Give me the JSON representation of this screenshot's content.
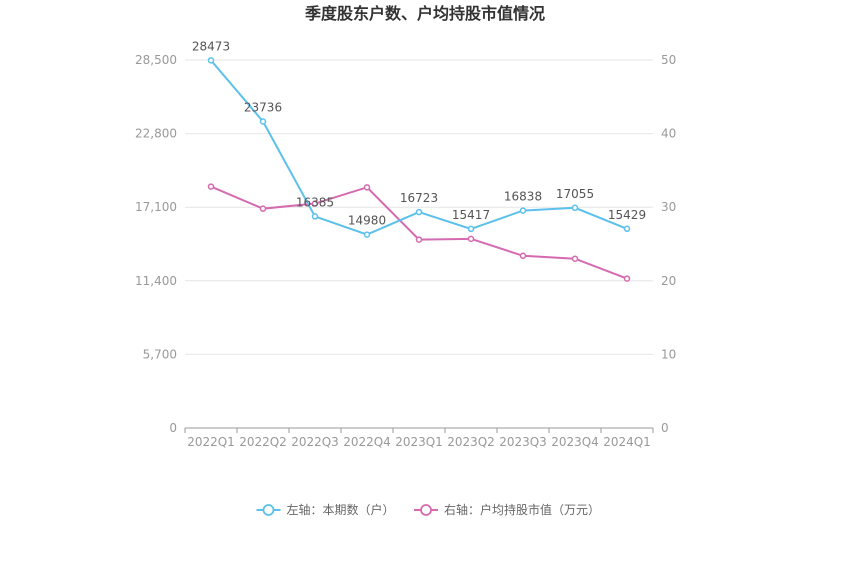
{
  "chart_data": {
    "type": "line",
    "title": "季度股东户数、户均持股市值情况",
    "categories": [
      "2022Q1",
      "2022Q2",
      "2022Q3",
      "2022Q4",
      "2023Q1",
      "2023Q2",
      "2023Q3",
      "2023Q4",
      "2024Q1"
    ],
    "left_axis": {
      "ticks": [
        "0",
        "5,700",
        "11,400",
        "17,100",
        "22,800",
        "28,500"
      ],
      "range": [
        0,
        28500
      ]
    },
    "right_axis": {
      "ticks": [
        "0",
        "10",
        "20",
        "30",
        "40",
        "50"
      ],
      "range": [
        0,
        50
      ]
    },
    "series": [
      {
        "name": "左轴：本期数（户）",
        "axis": "left",
        "color": "#5bc0eb",
        "values": [
          28473,
          23736,
          16385,
          14980,
          16723,
          15417,
          16838,
          17055,
          15429
        ],
        "labels": [
          "28473",
          "23736",
          "16385",
          "14980",
          "16723",
          "15417",
          "16838",
          "17055",
          "15429"
        ]
      },
      {
        "name": "右轴：户均持股市值（万元）",
        "axis": "right",
        "color": "#d66ab0",
        "values": [
          32.8,
          29.8,
          30.5,
          32.7,
          25.6,
          25.7,
          23.4,
          23.0,
          20.3
        ]
      }
    ],
    "grid": true,
    "legend_position": "bottom-center"
  }
}
